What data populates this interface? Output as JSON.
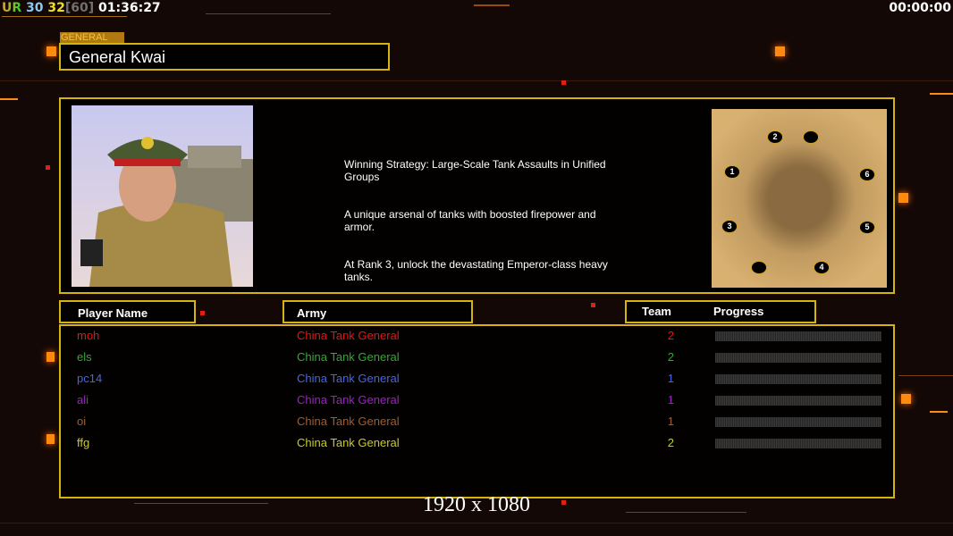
{
  "hud": {
    "ur": "UR",
    "fps_current": "30",
    "fps_cap": "32",
    "fps_max": "[60]",
    "clock": "01:36:27",
    "game_timer": "00:00:00"
  },
  "general": {
    "label": "GENERAL",
    "name": "General Kwai"
  },
  "description": [
    "Winning Strategy: Large-Scale Tank Assaults in Unified\n Groups",
    "A unique arsenal of tanks with boosted firepower and\n armor.",
    "At Rank 3, unlock the devastating Emperor-class heavy\n tanks."
  ],
  "map": {
    "start_positions": [
      "1",
      "2",
      "3",
      "4",
      "5",
      "6"
    ]
  },
  "table": {
    "headers": {
      "player": "Player Name",
      "army": "Army",
      "team": "Team",
      "progress": "Progress"
    },
    "rows": [
      {
        "name": "moh",
        "army": "China Tank General",
        "team": "2",
        "color": "#e01818",
        "progress": 0
      },
      {
        "name": "els",
        "army": "China Tank General",
        "team": "2",
        "color": "#34a834",
        "progress": 0
      },
      {
        "name": "pc14",
        "army": "China Tank General",
        "team": "1",
        "color": "#4a64e0",
        "progress": 0
      },
      {
        "name": "ali",
        "army": "China Tank General",
        "team": "1",
        "color": "#9a22c4",
        "progress": 0
      },
      {
        "name": "oi",
        "army": "China Tank General",
        "team": "1",
        "color": "#a05c32",
        "progress": 0
      },
      {
        "name": "ffg",
        "army": "China Tank General",
        "team": "2",
        "color": "#c8cc22",
        "progress": 0
      }
    ]
  },
  "resolution": "1920 x 1080",
  "colors": {
    "frame": "#d6b410",
    "accent": "#ff8a10",
    "background": "#140806"
  }
}
